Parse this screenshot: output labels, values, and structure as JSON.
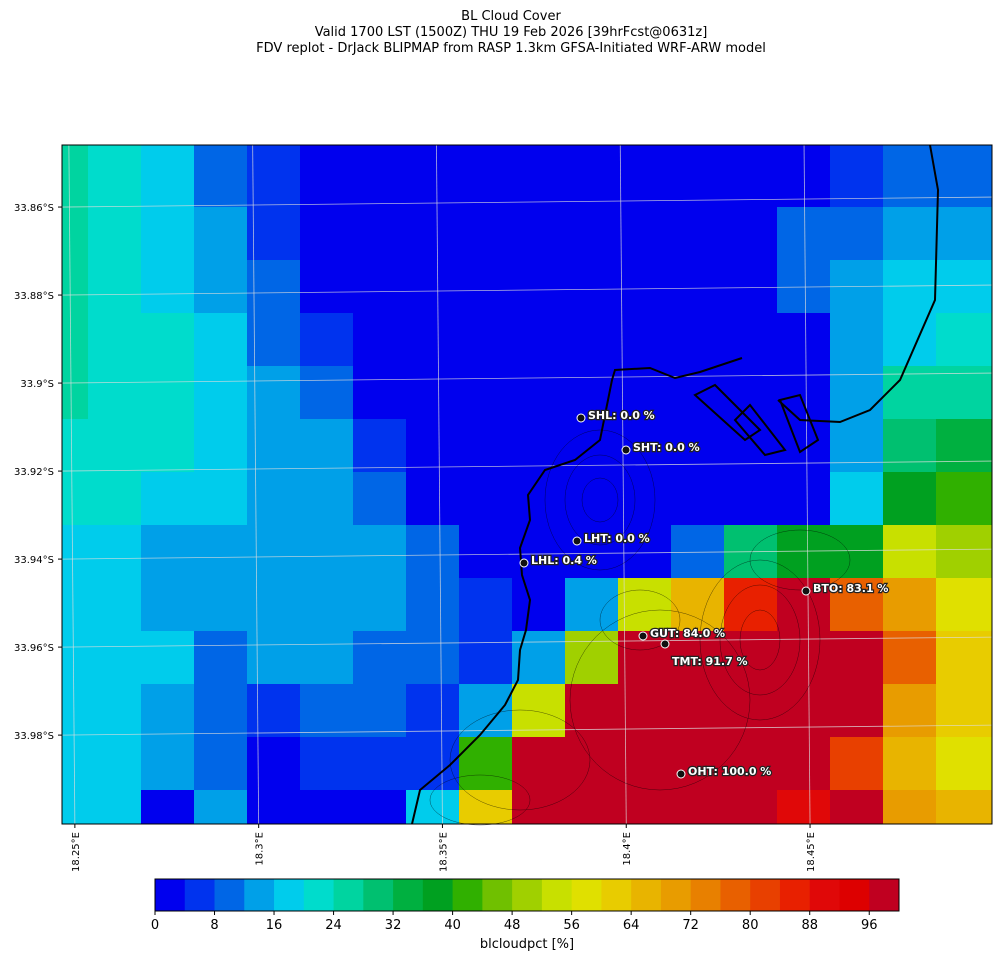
{
  "chart_data": {
    "type": "heatmap",
    "title": "BL Cloud Cover",
    "subtitle": [
      "Valid 1700 LST (1500Z) THU 19 Feb 2026 [39hrFcst@0631z]",
      "FDV replot - DrJack BLIPMAP from RASP 1.3km GFSA-Initiated WRF-ARW model"
    ],
    "xlim": [
      18.2465,
      18.4995
    ],
    "ylim": [
      -34.0002,
      -33.8459
    ],
    "xticks": [
      {
        "value": 18.25,
        "label": "18.25°E"
      },
      {
        "value": 18.3,
        "label": "18.3°E"
      },
      {
        "value": 18.35,
        "label": "18.35°E"
      },
      {
        "value": 18.4,
        "label": "18.4°E"
      },
      {
        "value": 18.45,
        "label": "18.45°E"
      }
    ],
    "yticks": [
      {
        "value": -33.86,
        "label": "33.86°S"
      },
      {
        "value": -33.88,
        "label": "33.88°S"
      },
      {
        "value": -33.9,
        "label": "33.9°S"
      },
      {
        "value": -33.92,
        "label": "33.92°S"
      },
      {
        "value": -33.94,
        "label": "33.94°S"
      },
      {
        "value": -33.96,
        "label": "33.96°S"
      },
      {
        "value": -33.98,
        "label": "33.98°S"
      }
    ],
    "grid": [
      [
        26,
        22,
        18,
        10,
        6,
        2,
        2,
        2,
        2,
        2,
        2,
        2,
        2,
        2,
        2,
        6,
        10,
        10
      ],
      [
        26,
        22,
        18,
        14,
        6,
        2,
        2,
        2,
        2,
        2,
        2,
        2,
        2,
        2,
        10,
        10,
        14,
        14
      ],
      [
        26,
        22,
        18,
        14,
        10,
        2,
        2,
        2,
        2,
        2,
        2,
        2,
        2,
        2,
        10,
        14,
        18,
        18
      ],
      [
        26,
        22,
        22,
        18,
        10,
        6,
        2,
        2,
        2,
        2,
        2,
        2,
        2,
        2,
        2,
        14,
        18,
        22
      ],
      [
        26,
        22,
        22,
        18,
        14,
        10,
        2,
        2,
        2,
        2,
        2,
        2,
        2,
        2,
        2,
        14,
        26,
        26
      ],
      [
        22,
        22,
        22,
        18,
        14,
        14,
        6,
        2,
        2,
        2,
        2,
        2,
        2,
        2,
        2,
        14,
        30,
        34
      ],
      [
        22,
        22,
        18,
        18,
        14,
        14,
        10,
        2,
        2,
        2,
        2,
        2,
        2,
        2,
        2,
        18,
        38,
        42
      ],
      [
        18,
        18,
        14,
        14,
        14,
        14,
        14,
        10,
        2,
        2,
        2,
        2,
        10,
        30,
        38,
        38,
        54,
        50
      ],
      [
        18,
        18,
        14,
        14,
        14,
        14,
        14,
        10,
        6,
        2,
        14,
        54,
        66,
        84,
        98,
        78,
        70,
        58
      ],
      [
        18,
        18,
        18,
        10,
        14,
        14,
        10,
        10,
        6,
        14,
        50,
        98,
        98,
        98,
        98,
        98,
        78,
        62
      ],
      [
        18,
        18,
        14,
        10,
        6,
        10,
        10,
        6,
        14,
        54,
        98,
        98,
        98,
        98,
        98,
        98,
        70,
        62
      ],
      [
        18,
        18,
        14,
        10,
        2,
        6,
        6,
        6,
        42,
        98,
        98,
        98,
        98,
        98,
        98,
        82,
        66,
        58
      ],
      [
        18,
        18,
        2,
        14,
        2,
        2,
        2,
        18,
        62,
        98,
        98,
        98,
        98,
        98,
        90,
        98,
        70,
        66
      ]
    ],
    "stations": [
      {
        "label": "SHL: 0.0 %"
      },
      {
        "label": "SHT: 0.0 %"
      },
      {
        "label": "LHT: 0.0 %"
      },
      {
        "label": "LHL: 0.4 %"
      },
      {
        "label": "BTO: 83.1 %"
      },
      {
        "label": "GUT: 84.0 %"
      },
      {
        "label": "TMT: 91.7 %"
      },
      {
        "label": "OHT: 100.0 %"
      }
    ],
    "colorbar": {
      "label": "blcloudpct [%]",
      "levels": [
        0,
        4,
        8,
        12,
        16,
        20,
        24,
        28,
        32,
        36,
        40,
        44,
        48,
        52,
        56,
        60,
        64,
        68,
        72,
        76,
        80,
        84,
        88,
        92,
        96,
        100
      ],
      "colors": [
        "#0000ee",
        "#0033ee",
        "#0066e6",
        "#00a0e8",
        "#00ccec",
        "#00dccc",
        "#00d4a0",
        "#00c070",
        "#00b040",
        "#00a020",
        "#30b000",
        "#70c000",
        "#a0d000",
        "#c8e000",
        "#e0e000",
        "#e8cc00",
        "#e8b400",
        "#e89c00",
        "#e88000",
        "#e86000",
        "#e84000",
        "#e82000",
        "#e00808",
        "#dd0000",
        "#c00020"
      ],
      "ticks": [
        0,
        8,
        16,
        24,
        32,
        40,
        48,
        56,
        64,
        72,
        80,
        88,
        96
      ]
    }
  }
}
